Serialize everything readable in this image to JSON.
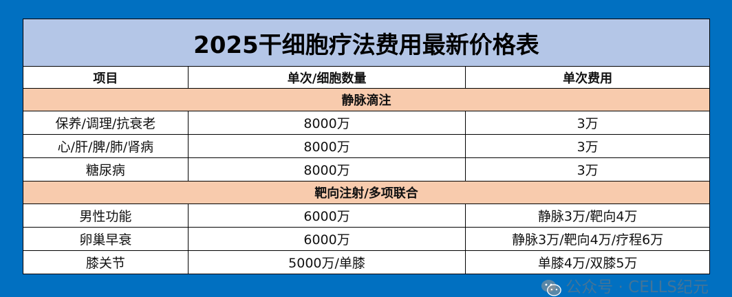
{
  "title": "2025干细胞疗法费用最新价格表",
  "headers": [
    "项目",
    "单次/细胞数量",
    "单次费用"
  ],
  "sections": [
    {
      "name": "静脉滴注",
      "rows": [
        [
          "保养/调理/抗衰老",
          "8000万",
          "3万"
        ],
        [
          "心/肝/脾/肺/肾病",
          "8000万",
          "3万"
        ],
        [
          "糖尿病",
          "8000万",
          "3万"
        ]
      ]
    },
    {
      "name": "靶向注射/多项联合",
      "rows": [
        [
          "男性功能",
          "6000万",
          "静脉3万/靶向4万"
        ],
        [
          "卵巢早衰",
          "6000万",
          "静脉3万/靶向4万/疗程6万"
        ],
        [
          "膝关节",
          "5000万/单膝",
          "单膝4万/双膝5万"
        ]
      ]
    }
  ],
  "watermark": {
    "icon": "wechat-icon",
    "text": "公众号 · CELLS纪元"
  },
  "colors": {
    "background": "#0170c1",
    "title_bg": "#b4c6e7",
    "section_bg": "#f8cbad"
  }
}
